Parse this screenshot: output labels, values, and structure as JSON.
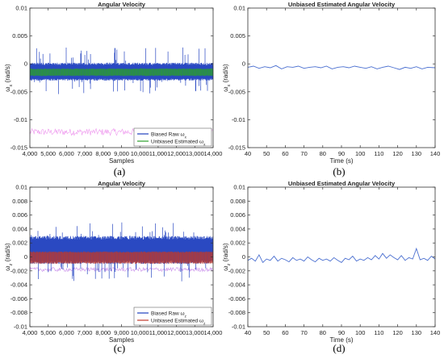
{
  "captions": [
    "(a)",
    "(b)",
    "(c)",
    "(d)"
  ],
  "chart_data": [
    {
      "id": "a",
      "type": "line",
      "title": "Angular Velocity",
      "xlabel": "Samples",
      "ylabel": "ω_x (rad/s)",
      "xlim": [
        4000,
        14000
      ],
      "ylim": [
        -0.015,
        0.01
      ],
      "x_ticks": [
        4000,
        5000,
        6000,
        7000,
        8000,
        9000,
        10000,
        11000,
        12000,
        13000,
        14000
      ],
      "x_tick_labels": [
        "4,000",
        "5,000",
        "6,000",
        "7,000",
        "8,000",
        "9,000",
        "10,000",
        "11,000",
        "12,000",
        "13,000",
        "14,000"
      ],
      "y_ticks": [
        -0.015,
        -0.01,
        -0.005,
        0,
        0.005,
        0.01
      ],
      "y_tick_labels": [
        "-0.015",
        "-0.01",
        "-0.005",
        "0",
        "0.005",
        "0.01"
      ],
      "legend": {
        "position": "bottom-right",
        "entries": [
          "Biased Raw ω_x",
          "Unbiased Estimated ω_x"
        ]
      },
      "series": [
        {
          "name": "Biased Raw ω_x",
          "color": "#1f3fbf",
          "kind": "noise-band",
          "band_center": -0.0015,
          "band_low": -0.003,
          "band_high": 0.0002,
          "spike_min": -0.0055,
          "spike_max": 0.003
        },
        {
          "name": "Unbiased Estimated ω_x",
          "color": "#2ca02c",
          "kind": "noise-band",
          "band_center": -0.0015,
          "band_low": -0.0022,
          "band_high": -0.0008
        }
      ],
      "background_trace": {
        "color": "#e040e0",
        "level": -0.0122,
        "spread": 0.0006
      }
    },
    {
      "id": "b",
      "type": "line",
      "title": "Unbiased Estimated Angular Velocity",
      "xlabel": "Time (s)",
      "ylabel": "ω_x (rad/s)",
      "xlim": [
        40,
        140
      ],
      "ylim": [
        -0.015,
        0.01
      ],
      "x_ticks": [
        40,
        50,
        60,
        70,
        80,
        90,
        100,
        110,
        120,
        130,
        140
      ],
      "x_tick_labels": [
        "40",
        "50",
        "60",
        "70",
        "80",
        "90",
        "100",
        "110",
        "120",
        "130",
        "140"
      ],
      "y_ticks": [
        -0.015,
        -0.01,
        -0.005,
        0,
        0.005,
        0.01
      ],
      "y_tick_labels": [
        "-0.015",
        "-0.01",
        "-0.005",
        "0",
        "0.005",
        "0.01"
      ],
      "series": [
        {
          "color": "#4a6fd0",
          "x": [
            40,
            43,
            46,
            49,
            52,
            55,
            58,
            61,
            64,
            67,
            70,
            73,
            76,
            79,
            82,
            85,
            88,
            91,
            94,
            97,
            100,
            103,
            106,
            109,
            112,
            115,
            118,
            121,
            124,
            127,
            130,
            133,
            136,
            140
          ],
          "y": [
            -0.0006,
            -0.0004,
            -0.0008,
            -0.0005,
            -0.0007,
            -0.0003,
            -0.0009,
            -0.0005,
            -0.0006,
            -0.0004,
            -0.0008,
            -0.0006,
            -0.0005,
            -0.0007,
            -0.0004,
            -0.0009,
            -0.0006,
            -0.0005,
            -0.0007,
            -0.0004,
            -0.0006,
            -0.0008,
            -0.0005,
            -0.0009,
            -0.0006,
            -0.0004,
            -0.0007,
            -0.001,
            -0.0006,
            -0.0008,
            -0.0005,
            -0.0009,
            -0.0006,
            -0.0007
          ]
        }
      ]
    },
    {
      "id": "c",
      "type": "line",
      "title": "Angular Velocity",
      "xlabel": "Samples",
      "ylabel": "ω_z (rad/s)",
      "xlim": [
        4000,
        14000
      ],
      "ylim": [
        -0.01,
        0.01
      ],
      "x_ticks": [
        4000,
        5000,
        6000,
        7000,
        8000,
        9000,
        10000,
        11000,
        12000,
        13000,
        14000
      ],
      "x_tick_labels": [
        "4,000",
        "5,000",
        "6,000",
        "7,000",
        "8,000",
        "9,000",
        "10,000",
        "11,000",
        "12,000",
        "13,000",
        "14,000"
      ],
      "y_ticks": [
        -0.01,
        -0.008,
        -0.006,
        -0.004,
        -0.002,
        0,
        0.002,
        0.004,
        0.006,
        0.008,
        0.01
      ],
      "y_tick_labels": [
        "-0.01",
        "-0.008",
        "-0.006",
        "-0.004",
        "-0.002",
        "0",
        "0.002",
        "0.004",
        "0.006",
        "0.008",
        "0.01"
      ],
      "legend": {
        "position": "bottom-right",
        "entries": [
          "Biased Raw ω_z",
          "Unbiased Estimated ω_z"
        ]
      },
      "series": [
        {
          "name": "Biased Raw ω_z",
          "color": "#1f3fbf",
          "kind": "noise-band",
          "band_center": 0.001,
          "band_low": -0.001,
          "band_high": 0.003,
          "spike_min": -0.0035,
          "spike_max": 0.005
        },
        {
          "name": "Unbiased Estimated ω_z",
          "color": "#c0392b",
          "kind": "noise-band",
          "band_center": 0.0,
          "band_low": -0.001,
          "band_high": 0.0008
        }
      ],
      "background_trace": {
        "color": "#9b30d9",
        "level": -0.0018,
        "spread": 0.0003
      }
    },
    {
      "id": "d",
      "type": "line",
      "title": "Unbiased Estimated Angular Velocity",
      "xlabel": "Time (s)",
      "ylabel": "ω_z (rad/s)",
      "xlim": [
        40,
        140
      ],
      "ylim": [
        -0.01,
        0.01
      ],
      "x_ticks": [
        40,
        50,
        60,
        70,
        80,
        90,
        100,
        110,
        120,
        130,
        140
      ],
      "x_tick_labels": [
        "40",
        "50",
        "60",
        "70",
        "80",
        "90",
        "100",
        "110",
        "120",
        "130",
        "140"
      ],
      "y_ticks": [
        -0.01,
        -0.008,
        -0.006,
        -0.004,
        -0.002,
        0,
        0.002,
        0.004,
        0.006,
        0.008,
        0.01
      ],
      "y_tick_labels": [
        "-0.01",
        "-0.008",
        "-0.006",
        "-0.004",
        "-0.002",
        "0",
        "0.002",
        "0.004",
        "0.006",
        "0.008",
        "0.01"
      ],
      "series": [
        {
          "color": "#4a6fd0",
          "x": [
            40,
            42,
            44,
            46,
            48,
            50,
            52,
            54,
            56,
            58,
            60,
            62,
            64,
            66,
            68,
            70,
            72,
            74,
            76,
            78,
            80,
            82,
            84,
            86,
            88,
            90,
            92,
            94,
            96,
            98,
            100,
            102,
            104,
            106,
            108,
            110,
            112,
            114,
            116,
            118,
            120,
            122,
            124,
            126,
            128,
            130,
            132,
            134,
            136,
            138,
            140
          ],
          "y": [
            -0.0005,
            -0.0002,
            -0.0006,
            0.0003,
            -0.0008,
            -0.0003,
            -0.0005,
            0.0001,
            -0.0006,
            -0.0002,
            -0.0004,
            -0.0007,
            -0.0001,
            -0.0005,
            -0.0003,
            -0.0006,
            0.0,
            -0.0004,
            -0.0007,
            -0.0002,
            -0.0005,
            -0.0003,
            -0.0006,
            -0.0001,
            -0.0005,
            -0.0008,
            -0.0002,
            -0.0004,
            0.0001,
            -0.0006,
            -0.0003,
            -0.0005,
            -0.0001,
            -0.0004,
            0.0002,
            -0.0003,
            0.0005,
            -0.0002,
            0.0003,
            -0.0001,
            -0.0004,
            0.0002,
            -0.0005,
            -0.0001,
            -0.0003,
            0.0012,
            -0.0004,
            -0.0002,
            -0.0005,
            0.0001,
            -0.0003
          ]
        }
      ]
    }
  ]
}
